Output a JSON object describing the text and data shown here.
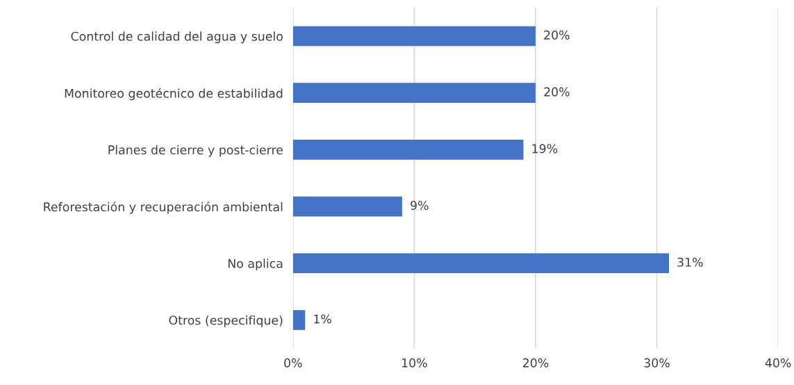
{
  "chart_data": {
    "type": "bar",
    "orientation": "horizontal",
    "categories": [
      "Control de calidad del agua y suelo",
      "Monitoreo geotécnico de estabilidad",
      "Planes de cierre y post-cierre",
      "Reforestación y recuperación ambiental",
      "No aplica",
      "Otros (especifique)"
    ],
    "values": [
      20,
      20,
      19,
      9,
      31,
      1
    ],
    "value_labels": [
      "20%",
      "20%",
      "19%",
      "9%",
      "31%",
      "1%"
    ],
    "color": "#4472c4",
    "xlim": [
      0,
      40
    ],
    "xticks": [
      {
        "value": 0,
        "label": "0%"
      },
      {
        "value": 10,
        "label": "10%"
      },
      {
        "value": 20,
        "label": "20%"
      },
      {
        "value": 30,
        "label": "30%"
      },
      {
        "value": 40,
        "label": "40%"
      }
    ],
    "grid": "x",
    "legend": false
  }
}
